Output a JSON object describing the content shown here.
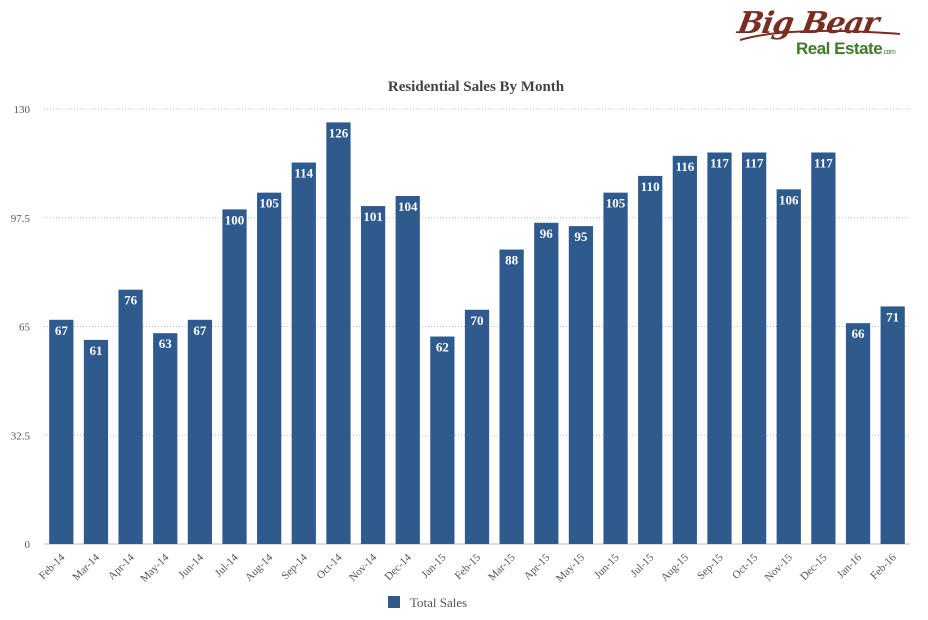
{
  "logo": {
    "word1": "Big Bear",
    "word2": "Real Estate",
    "suffix": ".com"
  },
  "chart_data": {
    "type": "bar",
    "title": "Residential Sales By Month",
    "xlabel": "",
    "ylabel": "",
    "ylim": [
      0,
      130
    ],
    "yticks": [
      "0",
      "32.5",
      "65",
      "97.5",
      "130"
    ],
    "categories": [
      "Feb-14",
      "Mar-14",
      "Apr-14",
      "May-14",
      "Jun-14",
      "Jul-14",
      "Aug-14",
      "Sep-14",
      "Oct-14",
      "Nov-14",
      "Dec-14",
      "Jan-15",
      "Feb-15",
      "Mar-15",
      "Apr-15",
      "May-15",
      "Jun-15",
      "Jul-15",
      "Aug-15",
      "Sep-15",
      "Oct-15",
      "Nov-15",
      "Dec-15",
      "Jan-16",
      "Feb-16"
    ],
    "series": [
      {
        "name": "Total Sales",
        "values": [
          67,
          61,
          76,
          63,
          67,
          100,
          105,
          114,
          126,
          101,
          104,
          62,
          70,
          88,
          96,
          95,
          105,
          110,
          116,
          117,
          117,
          106,
          117,
          66,
          71
        ]
      }
    ],
    "grid": true,
    "legend": "bottom-center",
    "bar_color": "#2e5a8e",
    "grid_color": "#bbbbbb"
  }
}
